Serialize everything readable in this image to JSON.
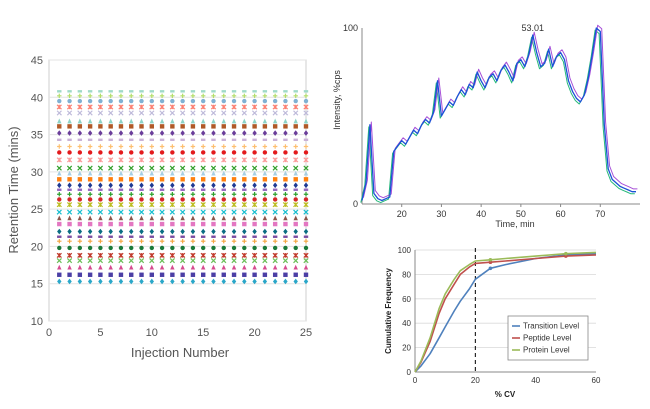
{
  "chart_data": [
    {
      "type": "scatter",
      "xlabel": "Injection Number",
      "ylabel": "Retention Time (mins)",
      "xlim": [
        0,
        25
      ],
      "ylim": [
        10,
        45
      ],
      "xticks": [
        0,
        5,
        10,
        15,
        20,
        25
      ],
      "yticks": [
        10,
        15,
        20,
        25,
        30,
        35,
        40,
        45
      ],
      "x": [
        1,
        2,
        3,
        4,
        5,
        6,
        7,
        8,
        9,
        10,
        11,
        12,
        13,
        14,
        15,
        16,
        17,
        18,
        19,
        20,
        21,
        22,
        23,
        24,
        25
      ],
      "retention_times": [
        15.3,
        16.2,
        17.2,
        18.1,
        18.8,
        19.8,
        20.7,
        21.3,
        22.0,
        23.0,
        23.8,
        24.6,
        25.6,
        26.3,
        27.0,
        27.6,
        28.2,
        29.0,
        29.8,
        30.5,
        31.6,
        32.6,
        33.4,
        34.3,
        35.2,
        36.1,
        36.8,
        37.9,
        38.7,
        39.5,
        40.2,
        40.8
      ],
      "colors": [
        "#2aa7c9",
        "#4b3fa5",
        "#d64b8f",
        "#6bbf59",
        "#c0392b",
        "#1b7a3a",
        "#f2a541",
        "#7b4ca0",
        "#0b6e83",
        "#e377c2",
        "#8c564b",
        "#17becf",
        "#bcbd22",
        "#d62728",
        "#2ca02c",
        "#9467bd",
        "#1f3a93",
        "#ff7f0e",
        "#a6cee3",
        "#33a02c",
        "#fb9a99",
        "#e31a1c",
        "#fdbf6f",
        "#cab2d6",
        "#6a3d9a",
        "#b15928",
        "#8dd3c7",
        "#bebada",
        "#fb8072",
        "#80b1d3",
        "#b3de69",
        "#9fd9c8"
      ],
      "markers": [
        "diamond",
        "square",
        "triangle",
        "x",
        "star",
        "circle",
        "plus",
        "bar"
      ]
    },
    {
      "type": "line",
      "xlabel": "Time, min",
      "ylabel": "Intensity, %cps",
      "xlim": [
        10,
        80
      ],
      "ylim": [
        0,
        100
      ],
      "xticks": [
        20,
        30,
        40,
        50,
        60,
        70
      ],
      "yticks": [
        0,
        100
      ],
      "annotation": {
        "text": "53.01",
        "x": 53.0,
        "y": 96
      },
      "series_colors": [
        "#1a52d6",
        "#a64fd8",
        "#26b97a"
      ],
      "x": [
        10,
        11,
        12,
        13,
        14,
        15,
        16,
        17,
        18,
        19,
        20,
        21,
        22,
        23,
        24,
        25,
        26,
        27,
        28,
        29,
        30,
        31,
        32,
        33,
        34,
        35,
        36,
        37,
        38,
        39,
        40,
        41,
        42,
        43,
        44,
        45,
        46,
        47,
        48,
        49,
        50,
        51,
        52,
        53,
        54,
        55,
        56,
        57,
        58,
        59,
        60,
        61,
        62,
        63,
        64,
        65,
        66,
        67,
        68,
        69,
        70,
        71,
        72,
        73,
        74,
        75,
        76,
        77,
        78,
        79
      ],
      "y": [
        2,
        12,
        45,
        6,
        3,
        2,
        3,
        4,
        30,
        33,
        36,
        34,
        38,
        42,
        40,
        45,
        48,
        46,
        52,
        70,
        50,
        54,
        58,
        56,
        61,
        65,
        62,
        68,
        66,
        75,
        70,
        66,
        72,
        74,
        70,
        76,
        79,
        75,
        70,
        80,
        82,
        78,
        85,
        96,
        86,
        78,
        80,
        88,
        78,
        84,
        86,
        82,
        70,
        64,
        60,
        58,
        62,
        72,
        85,
        100,
        98,
        45,
        20,
        14,
        12,
        10,
        9,
        8,
        7,
        7
      ]
    },
    {
      "type": "line",
      "xlabel": "% CV",
      "ylabel": "Cumulative Frequency",
      "xlim": [
        0,
        60
      ],
      "ylim": [
        0,
        100
      ],
      "xticks": [
        0,
        20,
        40,
        60
      ],
      "yticks": [
        0,
        20,
        40,
        60,
        80,
        100
      ],
      "x": [
        0,
        2,
        5,
        8,
        10,
        13,
        15,
        18,
        20,
        25,
        30,
        40,
        50,
        60
      ],
      "reference_line_x": 20,
      "series": [
        {
          "name": "Transition Level",
          "color": "#4f81bd",
          "values": [
            0,
            5,
            15,
            28,
            37,
            50,
            58,
            68,
            76,
            85,
            88,
            93,
            96,
            97
          ]
        },
        {
          "name": "Peptide Level",
          "color": "#c0504d",
          "values": [
            0,
            8,
            25,
            48,
            60,
            72,
            80,
            86,
            89,
            90,
            91,
            93,
            95,
            96
          ]
        },
        {
          "name": "Protein Level",
          "color": "#9bbb59",
          "values": [
            0,
            9,
            28,
            52,
            64,
            76,
            83,
            88,
            91,
            92,
            93,
            95,
            97,
            98
          ]
        }
      ]
    }
  ]
}
